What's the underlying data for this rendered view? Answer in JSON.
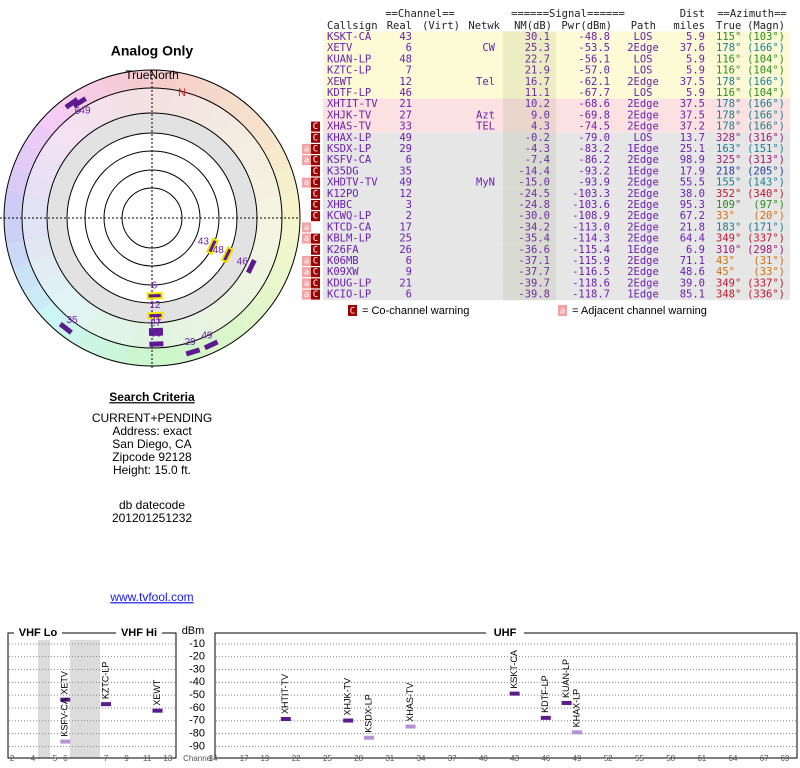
{
  "radar": {
    "title": "Analog Only",
    "north_label": "TrueNorth",
    "n_mark": "N",
    "markers": [
      {
        "label": "6",
        "azimuth": 325,
        "nm": -7.4
      },
      {
        "label": "49",
        "azimuth": 328,
        "nm": -0.2
      },
      {
        "label": "43",
        "azimuth": 115,
        "nm": 30.1
      },
      {
        "label": "48",
        "azimuth": 116,
        "nm": 22.7
      },
      {
        "label": "46",
        "azimuth": 116,
        "nm": 11.1
      },
      {
        "label": "6",
        "azimuth": 178,
        "nm": 25.3
      },
      {
        "label": "12",
        "azimuth": 178,
        "nm": 16.7
      },
      {
        "label": "21",
        "azimuth": 178,
        "nm": 10.2
      },
      {
        "label": "27",
        "azimuth": 178,
        "nm": 9.0
      },
      {
        "label": "33",
        "azimuth": 178,
        "nm": 4.3
      },
      {
        "label": "35",
        "azimuth": 218,
        "nm": -14.4
      },
      {
        "label": "29",
        "azimuth": 163,
        "nm": -4.3
      },
      {
        "label": "49",
        "azimuth": 155,
        "nm": -15.0
      }
    ]
  },
  "search": {
    "title": "Search Criteria",
    "lines": [
      "CURRENT+PENDING",
      "Address: exact",
      "San Diego, CA",
      "Zipcode 92128",
      "Height: 15.0 ft."
    ]
  },
  "db": {
    "title": "db datecode",
    "value": "201201251232"
  },
  "link": "www.tvfool.com",
  "table": {
    "groups": [
      "==Channel==",
      "======Signal======",
      "Dist",
      "==Azimuth=="
    ],
    "columns": [
      "Callsign",
      "Real",
      "(Virt)",
      "Netwk",
      "NM(dB)",
      "Pwr(dBm)",
      "Path",
      "miles",
      "True",
      "(Magn)"
    ],
    "rows": [
      {
        "cells": [
          "KSKT-CA",
          "43",
          null,
          "30.1",
          "-48.8",
          "LOS",
          "5.9",
          "115°",
          "(103°)"
        ],
        "warnings": [],
        "bg": "#fdfbd6",
        "az_color": "#2e8b1e"
      },
      {
        "cells": [
          "XETV",
          "6",
          "CW",
          "25.3",
          "-53.5",
          "2Edge",
          "37.6",
          "178°",
          "(166°)"
        ],
        "warnings": [],
        "bg": "#fdfbd6",
        "az_color": "#1a7f8f"
      },
      {
        "cells": [
          "KUAN-LP",
          "48",
          null,
          "22.7",
          "-56.1",
          "LOS",
          "5.9",
          "116°",
          "(104°)"
        ],
        "warnings": [],
        "bg": "#fdfbd6",
        "az_color": "#2e8b1e"
      },
      {
        "cells": [
          "KZTC-LP",
          "7",
          null,
          "21.9",
          "-57.0",
          "LOS",
          "5.9",
          "116°",
          "(104°)"
        ],
        "warnings": [],
        "bg": "#fdfbd6",
        "az_color": "#2e8b1e"
      },
      {
        "cells": [
          "XEWT",
          "12",
          "Tel",
          "16.7",
          "-62.1",
          "2Edge",
          "37.5",
          "178°",
          "(166°)"
        ],
        "warnings": [],
        "bg": "#fdfbd6",
        "az_color": "#1a7f8f"
      },
      {
        "cells": [
          "KDTF-LP",
          "46",
          null,
          "11.1",
          "-67.7",
          "LOS",
          "5.9",
          "116°",
          "(104°)"
        ],
        "warnings": [],
        "bg": "#fdfbd6",
        "az_color": "#2e8b1e"
      },
      {
        "cells": [
          "XHTIT-TV",
          "21",
          null,
          "10.2",
          "-68.6",
          "2Edge",
          "37.5",
          "178°",
          "(166°)"
        ],
        "warnings": [],
        "bg": "#fbe1e1",
        "az_color": "#1a7f8f"
      },
      {
        "cells": [
          "XHJK-TV",
          "27",
          "Azt",
          "9.0",
          "-69.8",
          "2Edge",
          "37.5",
          "178°",
          "(166°)"
        ],
        "warnings": [],
        "bg": "#fbe1e1",
        "az_color": "#1a7f8f"
      },
      {
        "cells": [
          "XHAS-TV",
          "33",
          "TEL",
          "4.3",
          "-74.5",
          "2Edge",
          "37.2",
          "178°",
          "(166°)"
        ],
        "warnings": [
          "C"
        ],
        "bg": "#fbe1e1",
        "az_color": "#1a7f8f"
      },
      {
        "cells": [
          "KHAX-LP",
          "49",
          null,
          "-0.2",
          "-79.0",
          "LOS",
          "13.7",
          "328°",
          "(316°)"
        ],
        "warnings": [
          "C"
        ],
        "bg": "#e6e6e6",
        "az_color": "#9b1b6e"
      },
      {
        "cells": [
          "KSDX-LP",
          "29",
          null,
          "-4.3",
          "-83.2",
          "1Edge",
          "25.1",
          "163°",
          "(151°)"
        ],
        "warnings": [
          "a",
          "C"
        ],
        "bg": "#e6e6e6",
        "az_color": "#1a7f8f"
      },
      {
        "cells": [
          "KSFV-CA",
          "6",
          null,
          "-7.4",
          "-86.2",
          "2Edge",
          "98.9",
          "325°",
          "(313°)"
        ],
        "warnings": [
          "a",
          "C"
        ],
        "bg": "#e6e6e6",
        "az_color": "#9b1b6e"
      },
      {
        "cells": [
          "K35DG",
          "35",
          null,
          "-14.4",
          "-93.2",
          "1Edge",
          "17.9",
          "218°",
          "(205°)"
        ],
        "warnings": [
          "C"
        ],
        "bg": "#e6e6e6",
        "az_color": "#1f3fa0"
      },
      {
        "cells": [
          "XHDTV-TV",
          "49",
          "MyN",
          "-15.0",
          "-93.9",
          "2Edge",
          "55.5",
          "155°",
          "(143°)"
        ],
        "warnings": [
          "a",
          "C"
        ],
        "bg": "#e6e6e6",
        "az_color": "#1a7f8f"
      },
      {
        "cells": [
          "K12PO",
          "12",
          null,
          "-24.5",
          "-103.3",
          "2Edge",
          "38.0",
          "352°",
          "(340°)"
        ],
        "warnings": [
          "C"
        ],
        "bg": "#e6e6e6",
        "az_color": "#c0182c"
      },
      {
        "cells": [
          "XHBC",
          "3",
          null,
          "-24.8",
          "-103.6",
          "2Edge",
          "95.3",
          "109°",
          "(97°)"
        ],
        "warnings": [
          "C"
        ],
        "bg": "#e6e6e6",
        "az_color": "#2e8b1e"
      },
      {
        "cells": [
          "KCWQ-LP",
          "2",
          null,
          "-30.0",
          "-108.9",
          "2Edge",
          "67.2",
          "33°",
          "(20°)"
        ],
        "warnings": [
          "C"
        ],
        "bg": "#e6e6e6",
        "az_color": "#d07010"
      },
      {
        "cells": [
          "KTCD-CA",
          "17",
          null,
          "-34.2",
          "-113.0",
          "2Edge",
          "21.8",
          "183°",
          "(171°)"
        ],
        "warnings": [
          "a"
        ],
        "bg": "#e6e6e6",
        "az_color": "#1a7f8f"
      },
      {
        "cells": [
          "KBLM-LP",
          "25",
          null,
          "-35.4",
          "-114.3",
          "2Edge",
          "64.4",
          "349°",
          "(337°)"
        ],
        "warnings": [
          "a",
          "C"
        ],
        "bg": "#e6e6e6",
        "az_color": "#c0182c"
      },
      {
        "cells": [
          "K26FA",
          "26",
          null,
          "-36.6",
          "-115.4",
          "1Edge",
          "6.9",
          "310°",
          "(298°)"
        ],
        "warnings": [
          "C"
        ],
        "bg": "#e6e6e6",
        "az_color": "#9b1b6e"
      },
      {
        "cells": [
          "K06MB",
          "6",
          null,
          "-37.1",
          "-115.9",
          "2Edge",
          "71.1",
          "43°",
          "(31°)"
        ],
        "warnings": [
          "a",
          "C"
        ],
        "bg": "#e6e6e6",
        "az_color": "#d07010"
      },
      {
        "cells": [
          "K09XW",
          "9",
          null,
          "-37.7",
          "-116.5",
          "2Edge",
          "48.6",
          "45°",
          "(33°)"
        ],
        "warnings": [
          "a",
          "C"
        ],
        "bg": "#e6e6e6",
        "az_color": "#d07010"
      },
      {
        "cells": [
          "KDUG-LP",
          "21",
          null,
          "-39.7",
          "-118.6",
          "2Edge",
          "39.0",
          "349°",
          "(337°)"
        ],
        "warnings": [
          "a",
          "C"
        ],
        "bg": "#e6e6e6",
        "az_color": "#c0182c"
      },
      {
        "cells": [
          "KCIO-LP",
          "6",
          null,
          "-39.8",
          "-118.7",
          "1Edge",
          "85.1",
          "348°",
          "(336°)"
        ],
        "warnings": [
          "a",
          "C"
        ],
        "bg": "#e6e6e6",
        "az_color": "#c0182c"
      }
    ]
  },
  "warning_legend": [
    {
      "mark": "C",
      "text": "= Co-channel warning"
    },
    {
      "mark": "a",
      "text": "= Adjacent channel warning"
    }
  ],
  "spectrum": {
    "bands": [
      "VHF Lo",
      "VHF Hi",
      "UHF"
    ],
    "y_label": "dBm",
    "x_label": "Channel",
    "ylim": [
      -7,
      -99
    ],
    "yticks": [
      -10,
      -20,
      -30,
      -40,
      -50,
      -60,
      -70,
      -80,
      -90
    ],
    "vhf_ticks": [
      2,
      4,
      5,
      6,
      7,
      9,
      11,
      13
    ],
    "uhf_ticks": [
      14,
      17,
      19,
      22,
      25,
      28,
      31,
      34,
      37,
      40,
      43,
      46,
      49,
      52,
      55,
      58,
      61,
      64,
      67,
      69
    ],
    "stations": [
      {
        "name": "XETV",
        "channel": 6,
        "dbm": -53.5,
        "color": "#5b1a8e"
      },
      {
        "name": "KSFV-CA",
        "channel": 6,
        "dbm": -86.2,
        "color": "#b691d6"
      },
      {
        "name": "KZTC-LP",
        "channel": 7,
        "dbm": -57.0,
        "color": "#5b1a8e"
      },
      {
        "name": "XEWT",
        "channel": 12,
        "dbm": -62.1,
        "color": "#5b1a8e"
      },
      {
        "name": "XHTIT-TV",
        "channel": 21,
        "dbm": -68.6,
        "color": "#5b1a8e"
      },
      {
        "name": "XHJK-TV",
        "channel": 27,
        "dbm": -69.8,
        "color": "#5b1a8e"
      },
      {
        "name": "KSDX-LP",
        "channel": 29,
        "dbm": -83.2,
        "color": "#b691d6"
      },
      {
        "name": "XHAS-TV",
        "channel": 33,
        "dbm": -74.5,
        "color": "#b691d6"
      },
      {
        "name": "KSKT-CA",
        "channel": 43,
        "dbm": -48.8,
        "color": "#5b1a8e"
      },
      {
        "name": "KDTF-LP",
        "channel": 46,
        "dbm": -67.7,
        "color": "#5b1a8e"
      },
      {
        "name": "KUAN-LP",
        "channel": 48,
        "dbm": -56.1,
        "color": "#5b1a8e"
      },
      {
        "name": "KHAX-LP",
        "channel": 49,
        "dbm": -79.0,
        "color": "#b691d6"
      }
    ]
  }
}
